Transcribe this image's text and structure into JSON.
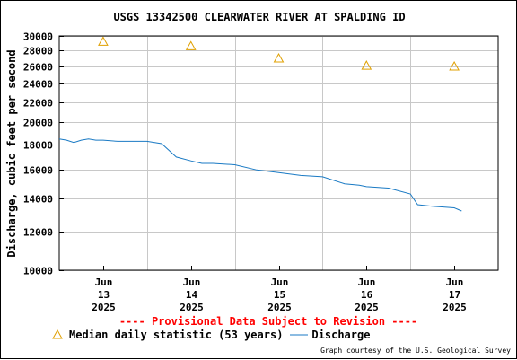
{
  "chart_data": {
    "type": "line",
    "title": "USGS 13342500 CLEARWATER RIVER AT SPALDING ID",
    "ylabel": "Discharge, cubic feet per second",
    "xlabel": "",
    "y_scale": "log",
    "ylim": [
      10000,
      30000
    ],
    "y_ticks": [
      10000,
      12000,
      14000,
      16000,
      18000,
      20000,
      22000,
      24000,
      26000,
      28000,
      30000
    ],
    "y_tick_labels": [
      "10000",
      "12000",
      "14000",
      "16000",
      "18000",
      "20000",
      "22000",
      "24000",
      "26000",
      "28000",
      "30000"
    ],
    "x_ticks": [
      {
        "x": "2025-06-13",
        "label": [
          "Jun",
          "13",
          "2025"
        ]
      },
      {
        "x": "2025-06-14",
        "label": [
          "Jun",
          "14",
          "2025"
        ]
      },
      {
        "x": "2025-06-15",
        "label": [
          "Jun",
          "15",
          "2025"
        ]
      },
      {
        "x": "2025-06-16",
        "label": [
          "Jun",
          "16",
          "2025"
        ]
      },
      {
        "x": "2025-06-17",
        "label": [
          "Jun",
          "17",
          "2025"
        ]
      }
    ],
    "xlim": [
      "2025-06-12 12:00",
      "2025-06-17 12:00"
    ],
    "grid": true,
    "series": [
      {
        "name": "Discharge",
        "color": "#1a7ac4",
        "x": [
          "2025-06-12 12:00",
          "2025-06-12 14:00",
          "2025-06-12 16:00",
          "2025-06-12 18:00",
          "2025-06-12 20:00",
          "2025-06-12 22:00",
          "2025-06-13 00:00",
          "2025-06-13 04:00",
          "2025-06-13 08:00",
          "2025-06-13 12:00",
          "2025-06-13 16:00",
          "2025-06-13 20:00",
          "2025-06-14 00:00",
          "2025-06-14 03:00",
          "2025-06-14 06:00",
          "2025-06-14 12:00",
          "2025-06-14 18:00",
          "2025-06-15 00:00",
          "2025-06-15 06:00",
          "2025-06-15 12:00",
          "2025-06-15 18:00",
          "2025-06-15 22:00",
          "2025-06-16 00:00",
          "2025-06-16 06:00",
          "2025-06-16 12:00",
          "2025-06-16 14:00",
          "2025-06-16 18:00",
          "2025-06-17 00:00",
          "2025-06-17 02:00"
        ],
        "y": [
          18500,
          18400,
          18200,
          18400,
          18500,
          18400,
          18400,
          18300,
          18300,
          18300,
          18100,
          17000,
          16700,
          16500,
          16500,
          16400,
          16000,
          15800,
          15600,
          15500,
          15000,
          14900,
          14800,
          14700,
          14300,
          13600,
          13500,
          13400,
          13200
        ]
      },
      {
        "name": "Median daily statistic (53 years)",
        "color": "#e0a000",
        "marker": "triangle",
        "x": [
          "2025-06-13 00:00",
          "2025-06-14 00:00",
          "2025-06-15 00:00",
          "2025-06-16 00:00",
          "2025-06-17 00:00"
        ],
        "y": [
          29200,
          28600,
          27000,
          26100,
          26000
        ]
      }
    ]
  },
  "provisional_notice": "---- Provisional Data Subject to Revision ----",
  "legend": {
    "median_label": "Median daily statistic (53 years)",
    "discharge_label": "Discharge"
  },
  "courtesy": "Graph courtesy of the U.S. Geological Survey"
}
